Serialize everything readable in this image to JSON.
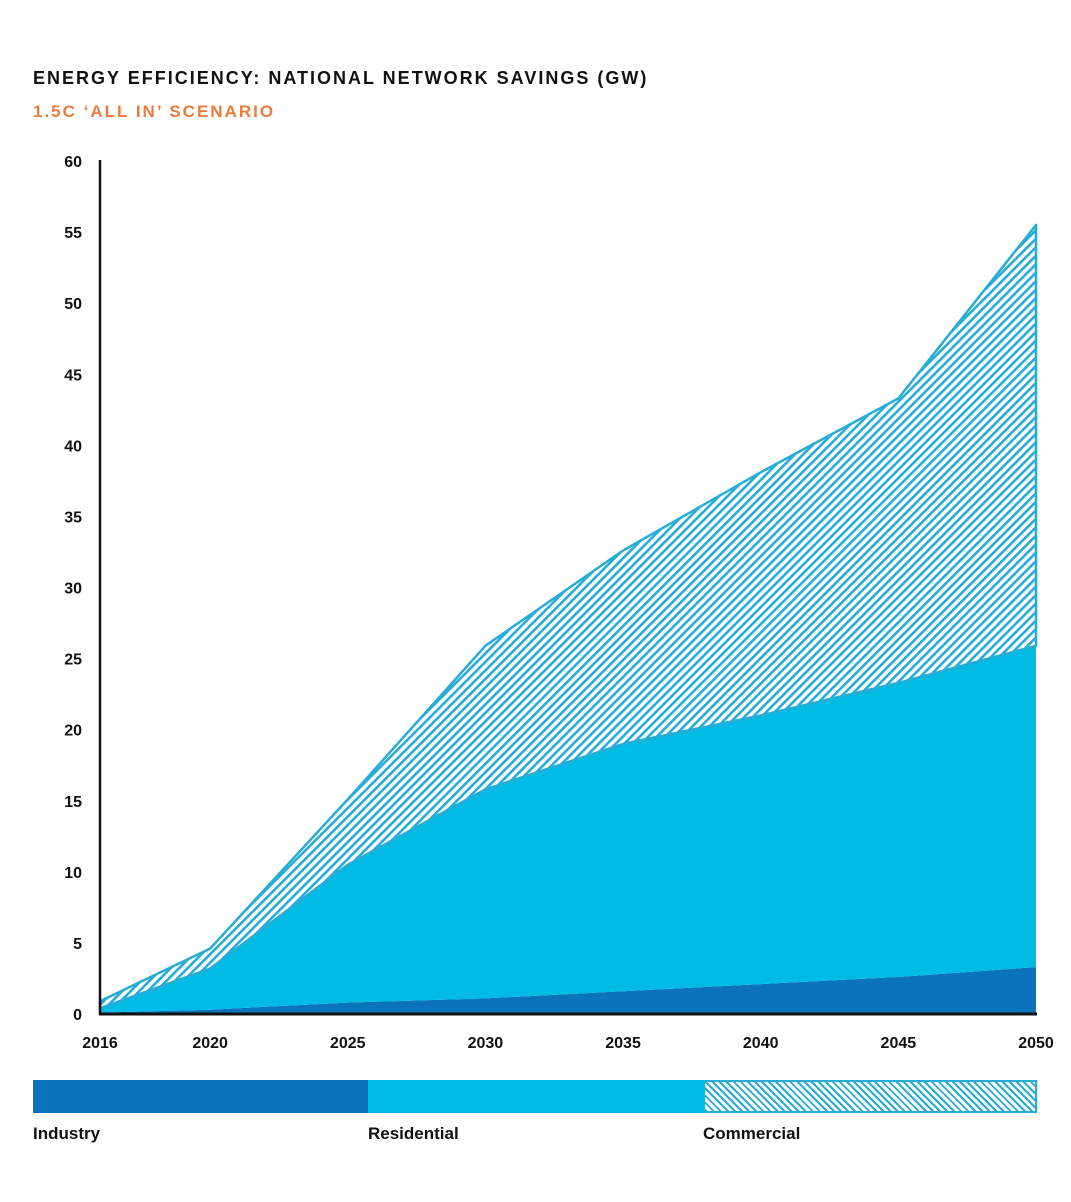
{
  "colors": {
    "industry": "#0a73bb",
    "residential": "#00bbe3",
    "commercial": "#27acd6",
    "subtitle": "#ec7b3c",
    "axis": "#111111"
  },
  "chart_data": {
    "type": "area",
    "stacked": true,
    "title": "ENERGY EFFICIENCY: NATIONAL NETWORK SAVINGS (GW)",
    "subtitle": "1.5C ‘ALL IN’ SCENARIO",
    "xlabel": "",
    "ylabel": "",
    "x": [
      2016,
      2020,
      2025,
      2030,
      2035,
      2040,
      2045,
      2050
    ],
    "xlim": [
      2016,
      2050
    ],
    "ylim": [
      0,
      60
    ],
    "x_ticks": [
      "2016",
      "2020",
      "2025",
      "2030",
      "2035",
      "2040",
      "2045",
      "2050"
    ],
    "y_ticks": [
      "0",
      "5",
      "10",
      "15",
      "20",
      "25",
      "30",
      "35",
      "40",
      "45",
      "50",
      "55",
      "60"
    ],
    "grid": false,
    "legend_position": "bottom",
    "series": [
      {
        "name": "Industry",
        "fill": "solid",
        "values": [
          0.1,
          0.3,
          0.8,
          1.1,
          1.6,
          2.1,
          2.6,
          3.3
        ]
      },
      {
        "name": "Residential",
        "fill": "solid",
        "values": [
          0.3,
          2.9,
          9.7,
          14.7,
          17.4,
          18.9,
          20.7,
          22.6
        ]
      },
      {
        "name": "Commercial",
        "fill": "hatched",
        "values": [
          0.5,
          1.4,
          4.6,
          10.1,
          13.6,
          17.1,
          20.0,
          29.6
        ]
      }
    ]
  },
  "legend": [
    {
      "label": "Industry",
      "key": "industry"
    },
    {
      "label": "Residential",
      "key": "residential"
    },
    {
      "label": "Commercial",
      "key": "commercial"
    }
  ]
}
